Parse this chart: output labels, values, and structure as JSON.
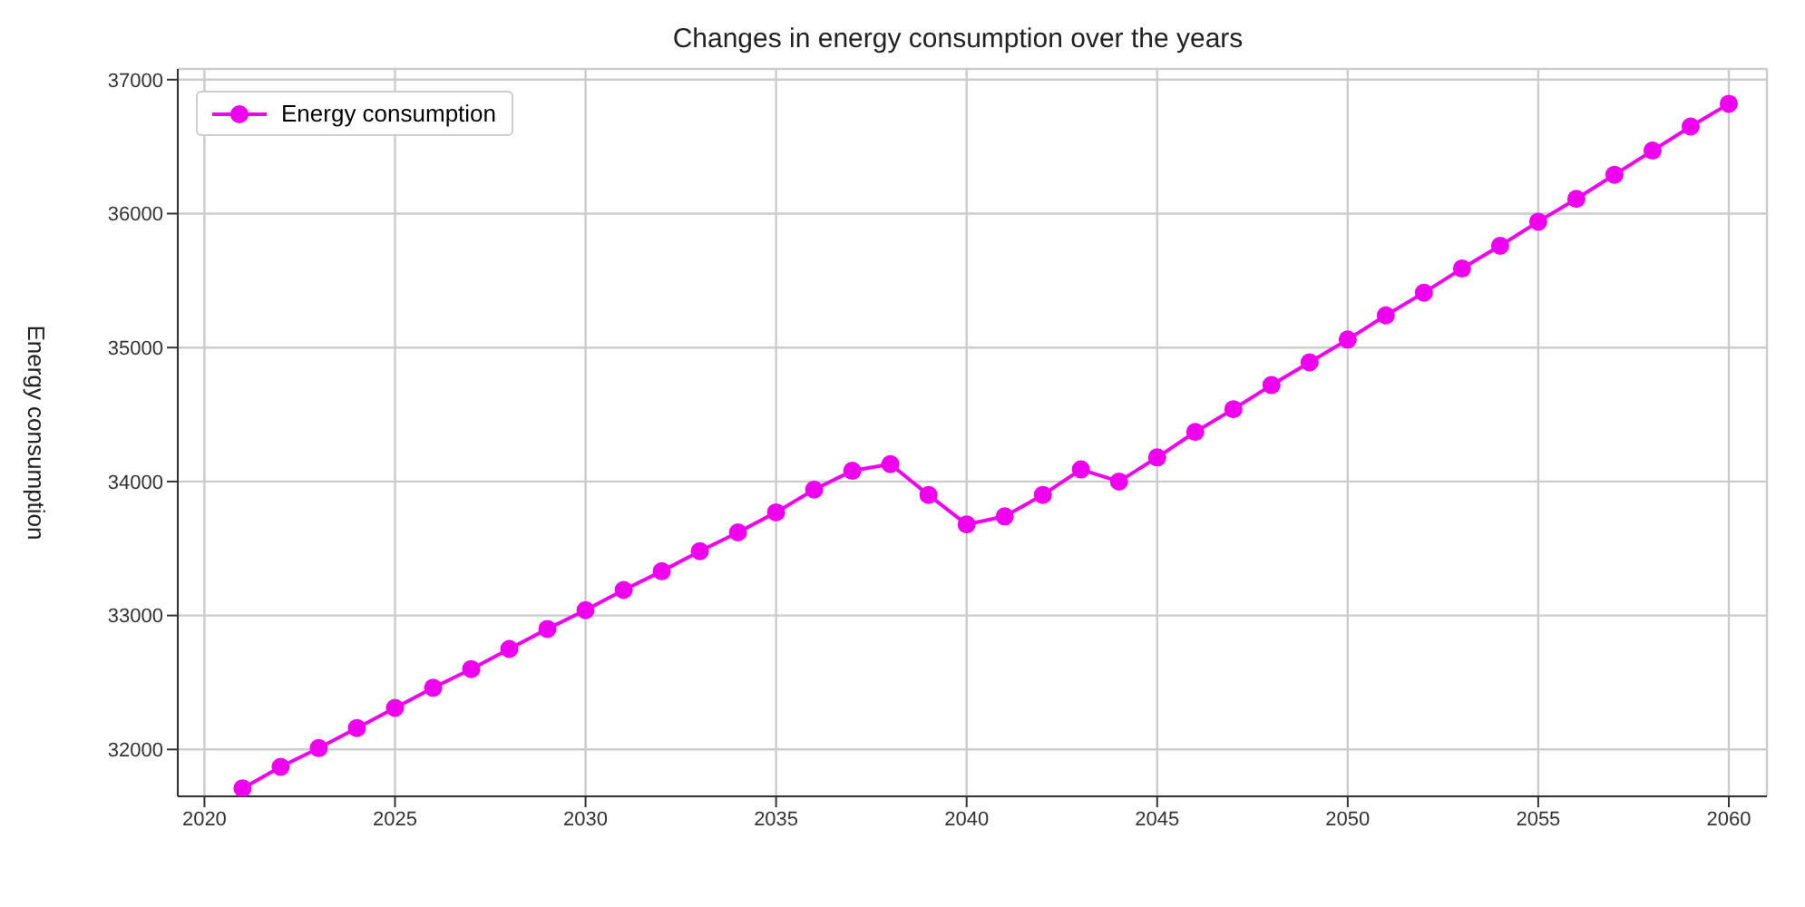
{
  "chart_data": {
    "type": "line",
    "title": "Changes in energy consumption over the years",
    "ylabel": "Energy consumption",
    "x": [
      2021,
      2022,
      2023,
      2024,
      2025,
      2026,
      2027,
      2028,
      2029,
      2030,
      2031,
      2032,
      2033,
      2034,
      2035,
      2036,
      2037,
      2038,
      2039,
      2040,
      2041,
      2042,
      2043,
      2044,
      2045,
      2046,
      2047,
      2048,
      2049,
      2050,
      2051,
      2052,
      2053,
      2054,
      2055,
      2056,
      2057,
      2058,
      2059,
      2060
    ],
    "series": [
      {
        "name": "Energy consumption",
        "color": "#ee00ee",
        "values": [
          31710,
          31870,
          32010,
          32160,
          32310,
          32460,
          32600,
          32750,
          32900,
          33040,
          33190,
          33330,
          33480,
          33620,
          33770,
          33940,
          34080,
          34130,
          33900,
          33680,
          33740,
          33900,
          34090,
          34000,
          34180,
          34370,
          34540,
          34720,
          34890,
          35060,
          35240,
          35410,
          35590,
          35760,
          35940,
          36110,
          36290,
          36470,
          36650,
          36820
        ]
      }
    ],
    "xlim": [
      2019.3,
      2061
    ],
    "xticks": [
      2020,
      2025,
      2030,
      2035,
      2040,
      2045,
      2050,
      2055,
      2060
    ],
    "ylim": [
      31650,
      37080
    ],
    "yticks": [
      32000,
      33000,
      34000,
      35000,
      36000,
      37000
    ],
    "grid": true,
    "legend": "top left",
    "marker": "circle",
    "line_style": "solid"
  }
}
